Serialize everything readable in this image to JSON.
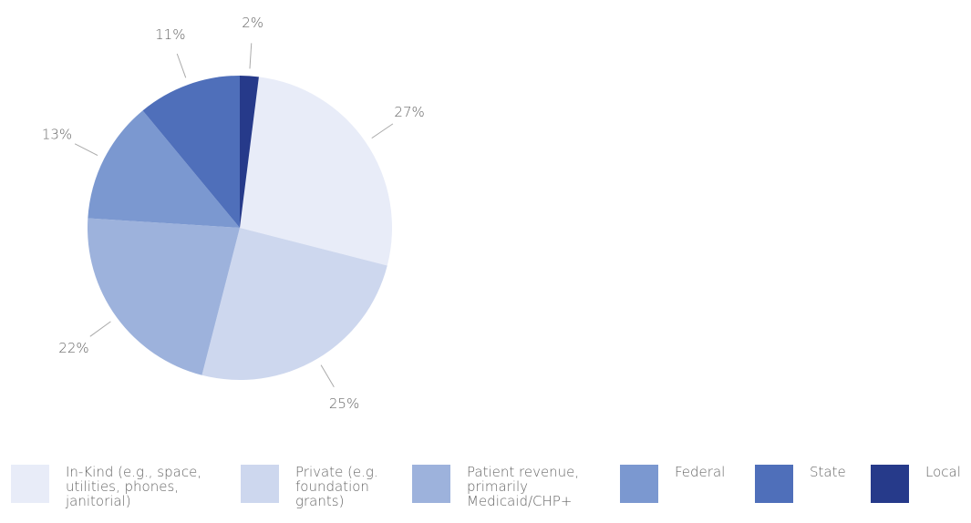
{
  "chart_data": {
    "type": "pie",
    "categories": [
      "In-Kind (e.g., space, utilities, phones, janitorial)",
      "Private (e.g. foundation grants)",
      "Patient revenue, primarily Medicaid/CHP+",
      "Federal",
      "State",
      "Local"
    ],
    "values": [
      27,
      25,
      22,
      13,
      11,
      2
    ],
    "value_labels": [
      "27%",
      "25%",
      "22%",
      "13%",
      "11%",
      "2%"
    ],
    "colors": [
      "#e8ecf8",
      "#cdd7ee",
      "#9db2dc",
      "#7b98d0",
      "#4f6fba",
      "#263a8a"
    ],
    "legend": "bottom"
  }
}
